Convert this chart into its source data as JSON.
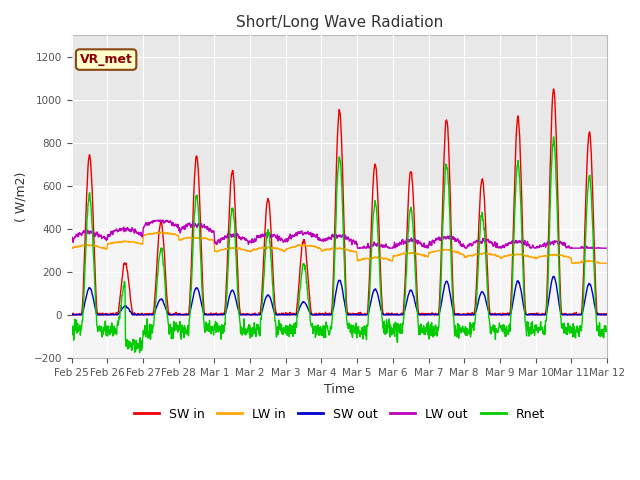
{
  "title": "Short/Long Wave Radiation",
  "xlabel": "Time",
  "ylabel": "( W/m2)",
  "ylim": [
    -200,
    1300
  ],
  "yticks": [
    -200,
    0,
    200,
    400,
    600,
    800,
    1000,
    1200
  ],
  "annotation": "VR_met",
  "background_color": "#ffffff",
  "plot_bg_color": "#ffffff",
  "upper_bg_color": "#e8e8e8",
  "lower_bg_color": "#f5f5f5",
  "lines": {
    "SW_in": {
      "color": "#ee0000",
      "label": "SW in",
      "lw": 1.0
    },
    "LW_in": {
      "color": "#ffa500",
      "label": "LW in",
      "lw": 1.0
    },
    "SW_out": {
      "color": "#0000cc",
      "label": "SW out",
      "lw": 1.0
    },
    "LW_out": {
      "color": "#bb00bb",
      "label": "LW out",
      "lw": 1.0
    },
    "Rnet": {
      "color": "#00cc00",
      "label": "Rnet",
      "lw": 1.0
    }
  },
  "xtick_labels": [
    "Feb 25",
    "Feb 26",
    "Feb 27",
    "Feb 28",
    "Mar 1",
    "Mar 2",
    "Mar 3",
    "Mar 4",
    "Mar 5",
    "Mar 6",
    "Mar 7",
    "Mar 8",
    "Mar 9",
    "Mar 10",
    "Mar 11",
    "Mar 12"
  ],
  "n_days": 15,
  "pts_per_day": 144
}
